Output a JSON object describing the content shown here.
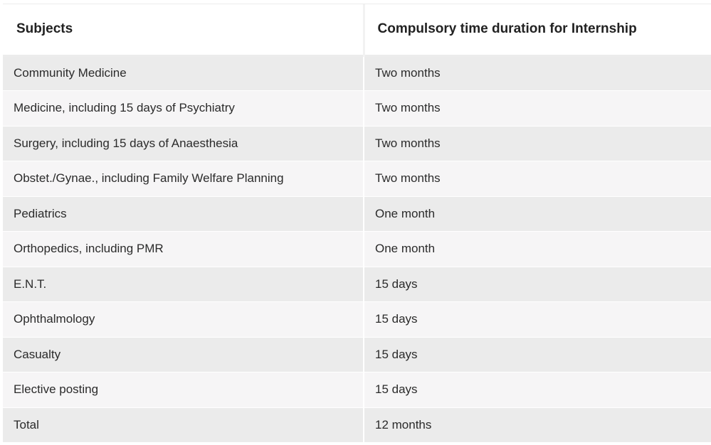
{
  "table": {
    "headers": [
      "Subjects",
      "Compulsory time duration for Internship"
    ],
    "rows": [
      [
        "Community Medicine",
        "Two months"
      ],
      [
        "Medicine, including 15 days of Psychiatry",
        "Two months"
      ],
      [
        "Surgery, including 15 days of Anaesthesia",
        "Two months"
      ],
      [
        "Obstet./Gynae., including Family Welfare Planning",
        "Two months"
      ],
      [
        "Pediatrics",
        "One month"
      ],
      [
        "Orthopedics, including PMR",
        "One month"
      ],
      [
        "E.N.T.",
        "15 days"
      ],
      [
        "Ophthalmology",
        "15 days"
      ],
      [
        "Casualty",
        "15 days"
      ],
      [
        "Elective posting",
        "15 days"
      ],
      [
        "Total",
        "12 months"
      ]
    ]
  }
}
